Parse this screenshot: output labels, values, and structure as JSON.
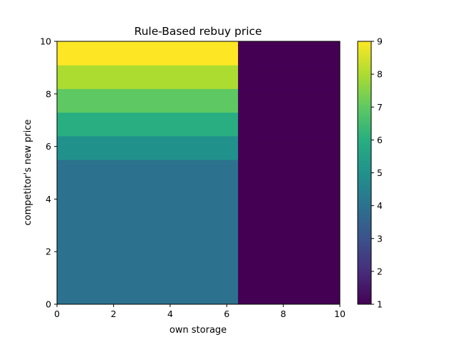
{
  "chart_data": {
    "type": "heatmap",
    "title": "Rule-Based rebuy price",
    "xlabel": "own storage",
    "ylabel": "competitor's new price",
    "xlim": [
      0,
      10
    ],
    "ylim": [
      0,
      10
    ],
    "xticks": [
      "0",
      "2",
      "4",
      "6",
      "8",
      "10"
    ],
    "yticks": [
      "0",
      "2",
      "4",
      "6",
      "8",
      "10"
    ],
    "x_edges": [
      0,
      6.4,
      10
    ],
    "y_edges": [
      0,
      5.5,
      6.4,
      7.3,
      8.2,
      9.1,
      10
    ],
    "cells": [
      [
        4,
        1
      ],
      [
        5,
        1
      ],
      [
        6,
        1
      ],
      [
        7,
        1
      ],
      [
        8,
        1
      ],
      [
        9,
        1
      ]
    ],
    "colorbar": {
      "min": 1,
      "max": 9,
      "ticks": [
        "1",
        "2",
        "3",
        "4",
        "5",
        "6",
        "7",
        "8",
        "9"
      ],
      "colormap": "viridis"
    }
  }
}
